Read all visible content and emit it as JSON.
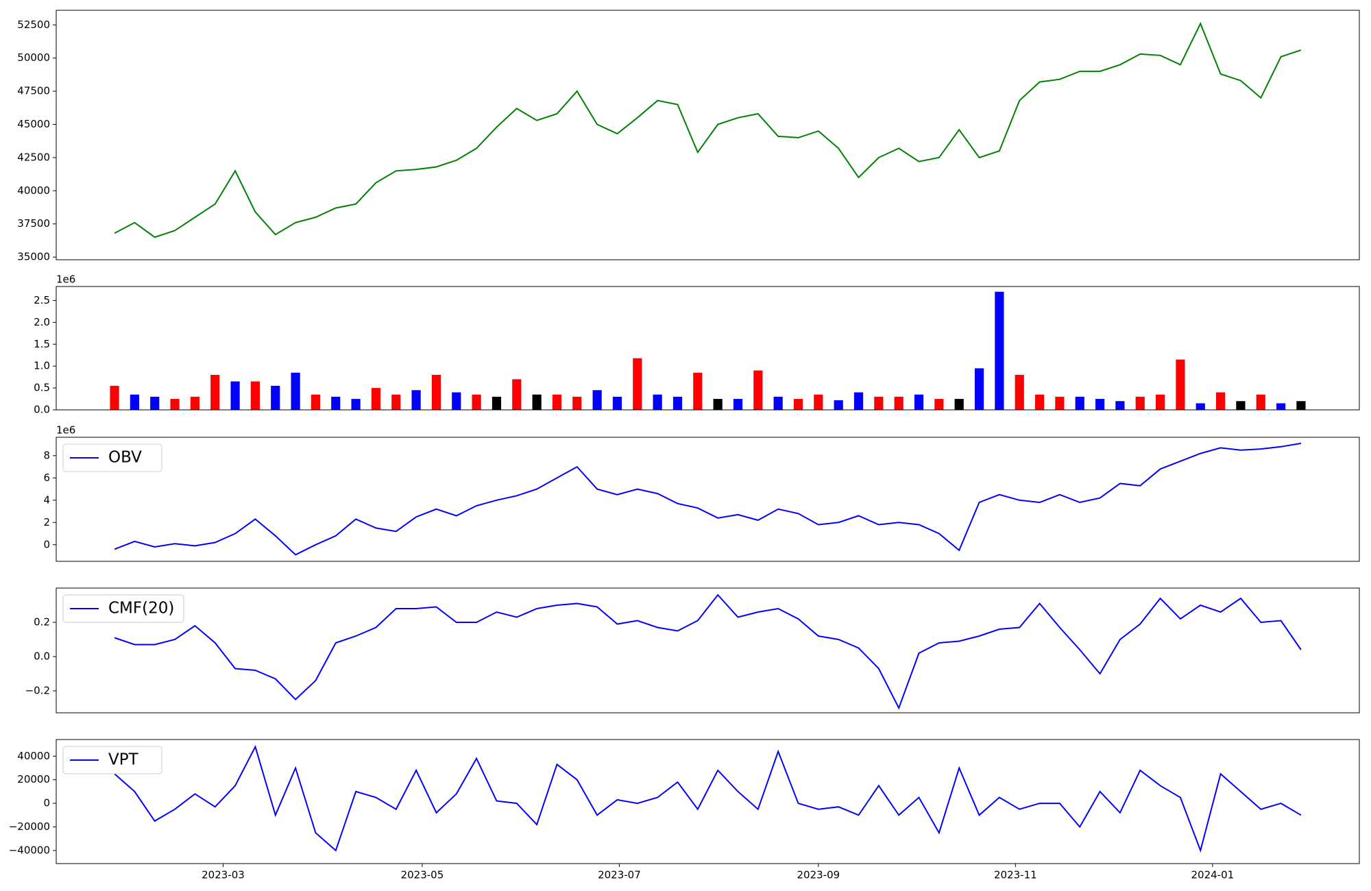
{
  "chart_data": [
    {
      "type": "line",
      "color": "#008000",
      "values": [
        36800,
        37600,
        36500,
        37000,
        38000,
        39000,
        41500,
        38400,
        36700,
        37600,
        38000,
        38700,
        39000,
        40600,
        41500,
        41600,
        41800,
        42300,
        43200,
        44800,
        46200,
        45300,
        45800,
        47500,
        45000,
        44300,
        45500,
        46800,
        46500,
        42900,
        45000,
        45500,
        45800,
        44100,
        44000,
        44500,
        43200,
        41000,
        42500,
        43200,
        42200,
        42500,
        44600,
        42500,
        43000,
        46800,
        48200,
        48400,
        49000,
        49000,
        49500,
        50300,
        50200,
        49500,
        52600,
        48800,
        48300,
        47000,
        50100,
        50600
      ],
      "xlim": [
        -2.9,
        61.9
      ],
      "ylim": [
        34800,
        53600
      ],
      "yticks": [
        35000,
        37500,
        40000,
        42500,
        45000,
        47500,
        50000,
        52500
      ]
    },
    {
      "type": "bar",
      "values": [
        550000,
        350000,
        300000,
        250000,
        300000,
        800000,
        650000,
        650000,
        550000,
        850000,
        350000,
        300000,
        250000,
        500000,
        350000,
        450000,
        800000,
        400000,
        350000,
        300000,
        700000,
        350000,
        350000,
        300000,
        450000,
        300000,
        1180000,
        350000,
        300000,
        850000,
        250000,
        250000,
        900000,
        300000,
        250000,
        350000,
        220000,
        400000,
        300000,
        300000,
        350000,
        250000,
        250000,
        950000,
        2700000,
        800000,
        350000,
        300000,
        300000,
        250000,
        200000,
        300000,
        350000,
        1150000,
        150000,
        400000,
        200000,
        350000,
        150000,
        200000
      ],
      "colors": [
        "red",
        "blue",
        "blue",
        "red",
        "red",
        "red",
        "blue",
        "red",
        "blue",
        "blue",
        "red",
        "blue",
        "blue",
        "red",
        "red",
        "blue",
        "red",
        "blue",
        "red",
        "black",
        "red",
        "black",
        "red",
        "red",
        "blue",
        "blue",
        "red",
        "blue",
        "blue",
        "red",
        "black",
        "blue",
        "red",
        "blue",
        "red",
        "red",
        "blue",
        "blue",
        "red",
        "red",
        "blue",
        "red",
        "black",
        "blue",
        "blue",
        "red",
        "red",
        "red",
        "blue",
        "blue",
        "blue",
        "red",
        "red",
        "red",
        "blue",
        "red",
        "black",
        "red",
        "blue",
        "black"
      ],
      "xlim": [
        -2.9,
        61.9
      ],
      "ylim": [
        0,
        2820000
      ],
      "y_offset_label": "1e6",
      "yticks": [
        {
          "value": 0,
          "label": "0.0"
        },
        {
          "value": 500000,
          "label": "0.5"
        },
        {
          "value": 1000000,
          "label": "1.0"
        },
        {
          "value": 1500000,
          "label": "1.5"
        },
        {
          "value": 2000000,
          "label": "2.0"
        },
        {
          "value": 2500000,
          "label": "2.5"
        }
      ]
    },
    {
      "type": "line",
      "legend": "upper left",
      "series": [
        {
          "name": "OBV",
          "color": "#0000ff",
          "values": [
            -400000,
            300000,
            -200000,
            100000,
            -100000,
            200000,
            1000000,
            2300000,
            800000,
            -900000,
            0,
            800000,
            2300000,
            1500000,
            1200000,
            2500000,
            3200000,
            2600000,
            3500000,
            4000000,
            4400000,
            5000000,
            6000000,
            7000000,
            5000000,
            4500000,
            5000000,
            4600000,
            3700000,
            3300000,
            2400000,
            2700000,
            2200000,
            3200000,
            2800000,
            1800000,
            2000000,
            2600000,
            1800000,
            2000000,
            1800000,
            1000000,
            -500000,
            3800000,
            4500000,
            4000000,
            3800000,
            4500000,
            3800000,
            4200000,
            5500000,
            5300000,
            6800000,
            7500000,
            8200000,
            8700000,
            8500000,
            8600000,
            8800000,
            9100000
          ]
        }
      ],
      "xlim": [
        -2.9,
        61.9
      ],
      "ylim": [
        -1490000,
        9650000
      ],
      "y_offset_label": "1e6",
      "yticks": [
        {
          "value": 0,
          "label": "0"
        },
        {
          "value": 2000000,
          "label": "2"
        },
        {
          "value": 4000000,
          "label": "4"
        },
        {
          "value": 6000000,
          "label": "6"
        },
        {
          "value": 8000000,
          "label": "8"
        }
      ]
    },
    {
      "type": "line",
      "legend": "upper left",
      "series": [
        {
          "name": "CMF(20)",
          "color": "#0000ff",
          "values": [
            0.11,
            0.07,
            0.07,
            0.1,
            0.18,
            0.08,
            -0.07,
            -0.08,
            -0.13,
            -0.25,
            -0.14,
            0.08,
            0.12,
            0.17,
            0.28,
            0.28,
            0.29,
            0.2,
            0.2,
            0.26,
            0.23,
            0.28,
            0.3,
            0.31,
            0.29,
            0.19,
            0.21,
            0.17,
            0.15,
            0.21,
            0.36,
            0.23,
            0.26,
            0.28,
            0.22,
            0.12,
            0.1,
            0.05,
            -0.07,
            -0.3,
            0.02,
            0.08,
            0.09,
            0.12,
            0.16,
            0.17,
            0.31,
            0.17,
            0.04,
            -0.1,
            0.1,
            0.19,
            0.34,
            0.22,
            0.3,
            0.26,
            0.34,
            0.2,
            0.21,
            0.04
          ]
        }
      ],
      "xlim": [
        -2.9,
        61.9
      ],
      "ylim": [
        -0.328,
        0.4
      ],
      "yticks": [
        {
          "value": -0.2,
          "label": "−0.2"
        },
        {
          "value": 0,
          "label": "0.0"
        },
        {
          "value": 0.2,
          "label": "0.2"
        }
      ]
    },
    {
      "type": "line",
      "legend": "upper left",
      "series": [
        {
          "name": "VPT",
          "color": "#0000ff",
          "values": [
            25000,
            10000,
            -15000,
            -5000,
            8000,
            -3000,
            15000,
            48000,
            -10000,
            30000,
            -25000,
            -40000,
            10000,
            5000,
            -5000,
            28000,
            -8000,
            8000,
            38000,
            2000,
            0,
            -18000,
            33000,
            20000,
            -10000,
            3000,
            0,
            5000,
            18000,
            -5000,
            28000,
            10000,
            -5000,
            44000,
            0,
            -5000,
            -3000,
            -10000,
            15000,
            -10000,
            5000,
            -25000,
            30000,
            -10000,
            5000,
            -5000,
            0,
            0,
            -20000,
            10000,
            -8000,
            28000,
            15000,
            5000,
            -40000,
            25000,
            10000,
            -5000,
            0,
            -10000
          ]
        }
      ],
      "xlim": [
        -2.9,
        61.9
      ],
      "ylim": [
        -51100,
        54100
      ],
      "yticks": [
        {
          "value": -40000,
          "label": "−40000"
        },
        {
          "value": -20000,
          "label": "−20000"
        },
        0,
        20000,
        40000
      ],
      "xticks": [
        {
          "value": 5.4,
          "label": "2023-03"
        },
        {
          "value": 15.3,
          "label": "2023-05"
        },
        {
          "value": 25.1,
          "label": "2023-07"
        },
        {
          "value": 35.0,
          "label": "2023-09"
        },
        {
          "value": 44.8,
          "label": "2023-11"
        },
        {
          "value": 54.6,
          "label": "2024-01"
        }
      ]
    }
  ]
}
